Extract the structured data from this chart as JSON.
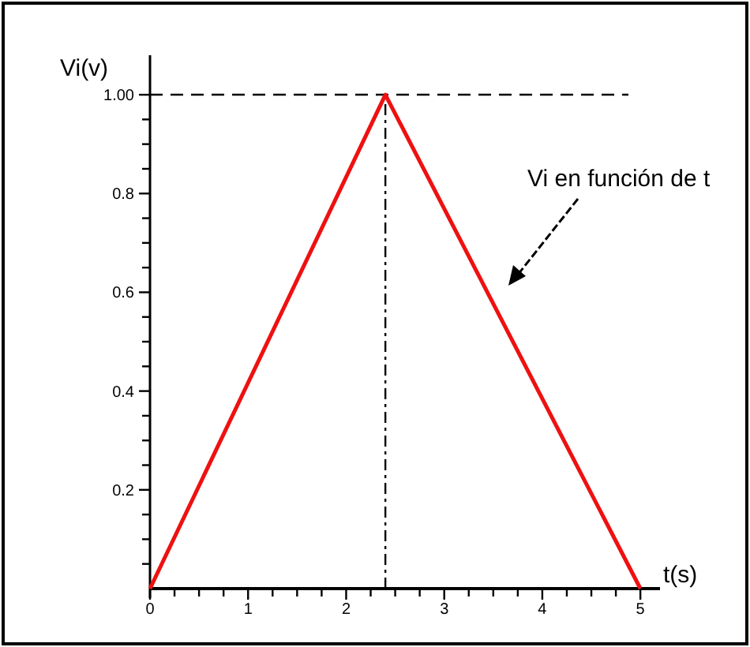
{
  "chart_data": {
    "type": "line",
    "xlabel": "t(s)",
    "ylabel": "Vi(v)",
    "x": [
      0,
      2.4,
      5
    ],
    "series": [
      {
        "color": "#ee1111",
        "values": [
          0,
          1,
          0
        ]
      }
    ],
    "xlim": [
      0,
      5.2
    ],
    "ylim": [
      0,
      1.08
    ],
    "xticks": [
      0,
      {
        "value": 0.25,
        "label": null
      },
      {
        "value": 0.5,
        "label": null
      },
      {
        "value": 0.75,
        "label": null
      },
      1,
      {
        "value": 1.25,
        "label": null
      },
      {
        "value": 1.5,
        "label": null
      },
      {
        "value": 1.75,
        "label": null
      },
      2,
      {
        "value": 2.25,
        "label": null
      },
      {
        "value": 2.5,
        "label": null
      },
      {
        "value": 2.75,
        "label": null
      },
      3,
      {
        "value": 3.25,
        "label": null
      },
      {
        "value": 3.5,
        "label": null
      },
      {
        "value": 3.75,
        "label": null
      },
      4,
      {
        "value": 4.25,
        "label": null
      },
      {
        "value": 4.5,
        "label": null
      },
      {
        "value": 4.75,
        "label": null
      },
      5
    ],
    "yticks": [
      {
        "value": 0.05,
        "label": null
      },
      {
        "value": 0.1,
        "label": null
      },
      {
        "value": 0.15,
        "label": null
      },
      0.2,
      {
        "value": 0.25,
        "label": null
      },
      {
        "value": 0.3,
        "label": null
      },
      {
        "value": 0.35,
        "label": null
      },
      0.4,
      {
        "value": 0.45,
        "label": null
      },
      {
        "value": 0.5,
        "label": null
      },
      {
        "value": 0.55,
        "label": null
      },
      0.6,
      {
        "value": 0.65,
        "label": null
      },
      {
        "value": 0.7,
        "label": null
      },
      {
        "value": 0.75,
        "label": null
      },
      0.8,
      {
        "value": 0.85,
        "label": null
      },
      {
        "value": 0.9,
        "label": null
      },
      {
        "value": 0.95,
        "label": null
      },
      {
        "value": 1,
        "label": "1.00"
      }
    ],
    "ref_lines": [
      {
        "axis": "y",
        "value": 1,
        "color": "#000000",
        "line_style": "dashed"
      },
      {
        "axis": "x",
        "value": 2.4,
        "color": "#000000",
        "line_style": "dashdot"
      }
    ],
    "annotations": [
      "Vi en función de t"
    ],
    "marker": "none",
    "line_style": "solid"
  }
}
